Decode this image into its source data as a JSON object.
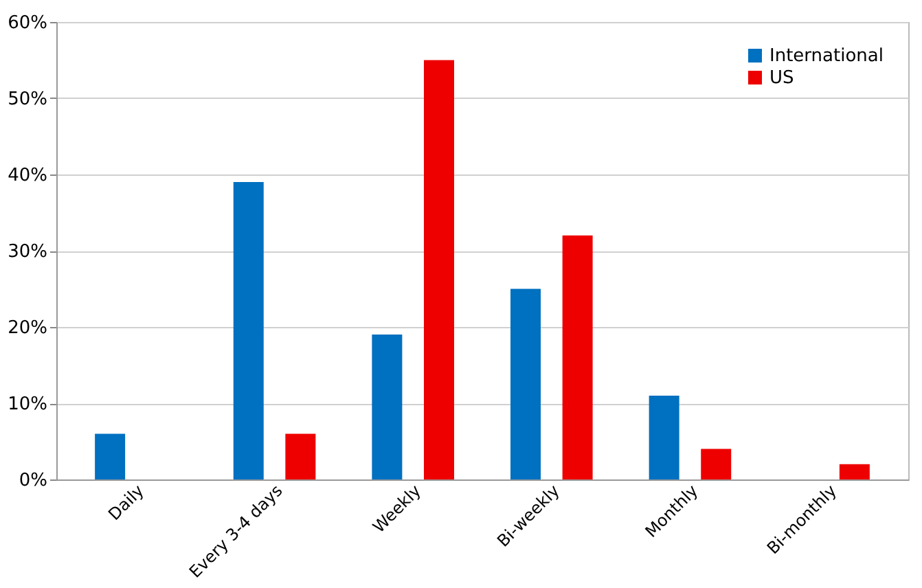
{
  "chart_data": {
    "type": "bar",
    "categories": [
      "Daily",
      "Every 3-4 days",
      "Weekly",
      "Bi-weekly",
      "Monthly",
      "Bi-monthly"
    ],
    "series": [
      {
        "name": "International",
        "color": "#0070c0",
        "values": [
          6,
          39,
          19,
          25,
          11,
          0
        ]
      },
      {
        "name": "US",
        "color": "#ee0000",
        "values": [
          0,
          6,
          55,
          32,
          4,
          2
        ]
      }
    ],
    "ylim": [
      0,
      60
    ],
    "yticks": [
      {
        "value": 0,
        "label": "0%"
      },
      {
        "value": 10,
        "label": "10%"
      },
      {
        "value": 20,
        "label": "20%"
      },
      {
        "value": 30,
        "label": "30%"
      },
      {
        "value": 40,
        "label": "40%"
      },
      {
        "value": 50,
        "label": "50%"
      },
      {
        "value": 60,
        "label": "60%"
      }
    ],
    "grid": "y",
    "legend": "top right"
  }
}
